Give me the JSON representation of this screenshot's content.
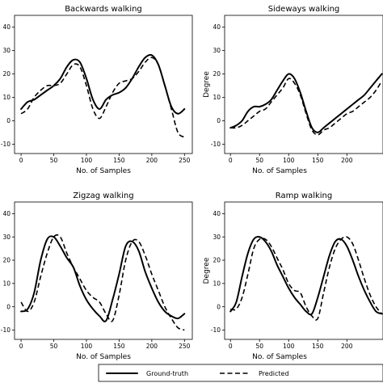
{
  "legend": {
    "entries": [
      "Ground-truth",
      "Predicted"
    ]
  },
  "chart_data": [
    {
      "type": "line",
      "title": "Backwards walking",
      "xlabel": "No. of Samples",
      "ylabel": "",
      "xlim": [
        -10,
        262
      ],
      "ylim": [
        -14,
        45
      ],
      "xticks": [
        0,
        50,
        100,
        150,
        200,
        250
      ],
      "yticks": [
        -10,
        0,
        10,
        20,
        30,
        40
      ],
      "series": [
        {
          "name": "Ground-truth",
          "style": "solid",
          "x": [
            0,
            10,
            20,
            30,
            40,
            50,
            60,
            70,
            80,
            90,
            100,
            110,
            120,
            130,
            140,
            150,
            160,
            170,
            180,
            190,
            200,
            210,
            220,
            230,
            240,
            250
          ],
          "y": [
            5,
            8,
            9,
            11,
            13,
            15,
            18,
            23,
            26,
            25,
            18,
            9,
            5,
            9,
            11,
            12,
            14,
            18,
            23,
            27,
            28,
            24,
            15,
            6,
            3,
            5
          ]
        },
        {
          "name": "Predicted",
          "style": "dashed",
          "x": [
            0,
            10,
            20,
            30,
            40,
            50,
            60,
            70,
            80,
            90,
            100,
            110,
            120,
            130,
            140,
            150,
            160,
            170,
            180,
            190,
            200,
            210,
            220,
            230,
            240,
            250
          ],
          "y": [
            3,
            5,
            10,
            13,
            15,
            15,
            16,
            20,
            24,
            23,
            15,
            5,
            1,
            6,
            12,
            16,
            17,
            18,
            21,
            25,
            27,
            24,
            15,
            5,
            -5,
            -7
          ]
        }
      ]
    },
    {
      "type": "line",
      "title": "Sideways walking",
      "xlabel": "No. of Samples",
      "ylabel": "Degree",
      "xlim": [
        -10,
        262
      ],
      "ylim": [
        -14,
        45
      ],
      "xticks": [
        0,
        50,
        100,
        150,
        200
      ],
      "yticks": [
        -10,
        0,
        10,
        20,
        30,
        40
      ],
      "series": [
        {
          "name": "Ground-truth",
          "style": "solid",
          "x": [
            0,
            10,
            20,
            30,
            40,
            50,
            60,
            70,
            80,
            90,
            100,
            110,
            120,
            130,
            140,
            150,
            160,
            170,
            180,
            190,
            200,
            210,
            220,
            230,
            240,
            250,
            260
          ],
          "y": [
            -3,
            -2,
            0,
            4,
            6,
            6,
            7,
            9,
            13,
            17,
            20,
            18,
            12,
            4,
            -3,
            -5,
            -3,
            -1,
            1,
            3,
            5,
            7,
            9,
            11,
            14,
            17,
            20
          ]
        },
        {
          "name": "Predicted",
          "style": "dashed",
          "x": [
            0,
            10,
            20,
            30,
            40,
            50,
            60,
            70,
            80,
            90,
            100,
            110,
            120,
            130,
            140,
            150,
            160,
            170,
            180,
            190,
            200,
            210,
            220,
            230,
            240,
            250,
            260
          ],
          "y": [
            -3,
            -3,
            -2,
            0,
            2,
            4,
            5,
            8,
            11,
            14,
            18,
            16,
            11,
            3,
            -4,
            -6,
            -4,
            -3,
            -1,
            1,
            3,
            4,
            6,
            8,
            10,
            13,
            17
          ]
        }
      ]
    },
    {
      "type": "line",
      "title": "Zigzag walking",
      "xlabel": "No. of Samples",
      "ylabel": "",
      "xlim": [
        -10,
        262
      ],
      "ylim": [
        -14,
        45
      ],
      "xticks": [
        0,
        50,
        100,
        150,
        200,
        250
      ],
      "yticks": [
        -10,
        0,
        10,
        20,
        30,
        40
      ],
      "series": [
        {
          "name": "Ground-truth",
          "style": "solid",
          "x": [
            0,
            10,
            20,
            30,
            40,
            50,
            60,
            70,
            80,
            90,
            100,
            110,
            120,
            130,
            140,
            150,
            160,
            170,
            180,
            190,
            200,
            210,
            220,
            230,
            240,
            250
          ],
          "y": [
            -2,
            -1,
            6,
            20,
            29,
            30,
            26,
            21,
            17,
            9,
            3,
            -1,
            -4,
            -6,
            3,
            14,
            26,
            28,
            24,
            15,
            8,
            2,
            -2,
            -4,
            -5,
            -3
          ]
        },
        {
          "name": "Predicted",
          "style": "dashed",
          "x": [
            0,
            10,
            20,
            30,
            40,
            50,
            60,
            70,
            80,
            90,
            100,
            110,
            120,
            130,
            140,
            150,
            160,
            170,
            180,
            190,
            200,
            210,
            220,
            230,
            240,
            250
          ],
          "y": [
            2,
            -2,
            2,
            13,
            23,
            30,
            30,
            23,
            17,
            12,
            7,
            4,
            2,
            -3,
            -6,
            5,
            20,
            28,
            28,
            22,
            14,
            7,
            0,
            -5,
            -9,
            -10
          ]
        }
      ]
    },
    {
      "type": "line",
      "title": "Ramp walking",
      "xlabel": "No. of Samples",
      "ylabel": "Degree",
      "xlim": [
        -10,
        262
      ],
      "ylim": [
        -14,
        45
      ],
      "xticks": [
        0,
        50,
        100,
        150,
        200
      ],
      "yticks": [
        -10,
        0,
        10,
        20,
        30,
        40
      ],
      "series": [
        {
          "name": "Ground-truth",
          "style": "solid",
          "x": [
            0,
            10,
            20,
            30,
            40,
            50,
            60,
            70,
            80,
            90,
            100,
            110,
            120,
            130,
            140,
            150,
            160,
            170,
            180,
            190,
            200,
            210,
            220,
            230,
            240,
            250,
            260
          ],
          "y": [
            -2,
            2,
            13,
            23,
            29,
            30,
            28,
            24,
            18,
            13,
            8,
            4,
            1,
            -2,
            -3,
            4,
            13,
            22,
            28,
            29,
            26,
            20,
            13,
            7,
            2,
            -2,
            -3
          ]
        },
        {
          "name": "Predicted",
          "style": "dashed",
          "x": [
            0,
            10,
            20,
            30,
            40,
            50,
            60,
            70,
            80,
            90,
            100,
            110,
            120,
            130,
            140,
            150,
            160,
            170,
            180,
            190,
            200,
            210,
            220,
            230,
            240,
            250,
            260
          ],
          "y": [
            -1,
            -1,
            4,
            14,
            25,
            29,
            29,
            26,
            21,
            16,
            10,
            7,
            6,
            0,
            -4,
            -5,
            6,
            17,
            25,
            29,
            30,
            27,
            20,
            12,
            5,
            0,
            -3
          ]
        }
      ]
    }
  ]
}
